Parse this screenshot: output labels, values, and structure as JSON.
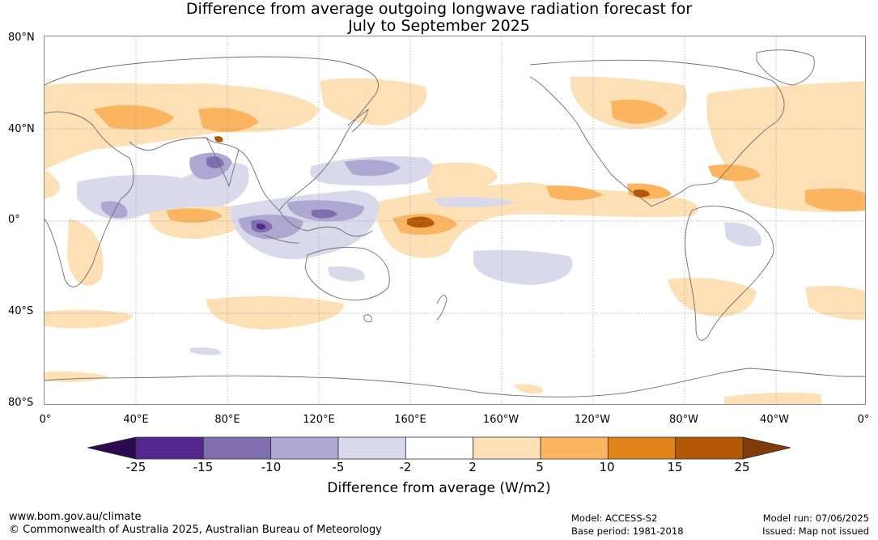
{
  "title": {
    "line1": "Difference from average outgoing longwave radiation forecast for",
    "line2": "July to September 2025"
  },
  "y_axis_labels": [
    "80°N",
    "40°N",
    "0°",
    "40°S",
    "80°S"
  ],
  "x_axis_labels": [
    "0°",
    "40°E",
    "80°E",
    "120°E",
    "160°E",
    "160°W",
    "120°W",
    "80°W",
    "40°W",
    "0°"
  ],
  "colorbar": {
    "label": "Difference from average (W/m2)",
    "ticks": [
      "-25",
      "-15",
      "-10",
      "-5",
      "-2",
      "2",
      "5",
      "10",
      "15",
      "25"
    ],
    "colors": {
      "below_min": "#2d0a4e",
      "bins": [
        "#54278f",
        "#7f6fae",
        "#aea7d2",
        "#d9d9eb",
        "#ffffff",
        "#fde0b5",
        "#fbb45f",
        "#e0841a",
        "#b35806"
      ],
      "above_max": "#7f3b08"
    }
  },
  "footer": {
    "website": "www.bom.gov.au/climate",
    "copyright": "© Commonwealth of Australia 2025, Australian Bureau of Meteorology",
    "model": "Model: ACCESS-S2",
    "base_period": "Base period: 1981-2018",
    "model_run": "Model run: 07/06/2025",
    "issued": "Issued: Map not issued"
  },
  "map": {
    "projection": "equirectangular",
    "lon_range": [
      0,
      360
    ],
    "lat_range": [
      -80,
      80
    ],
    "gridlines": true,
    "colors": {
      "land_outline": "#6e6e6e",
      "gridline": "#a0a0a0"
    }
  }
}
